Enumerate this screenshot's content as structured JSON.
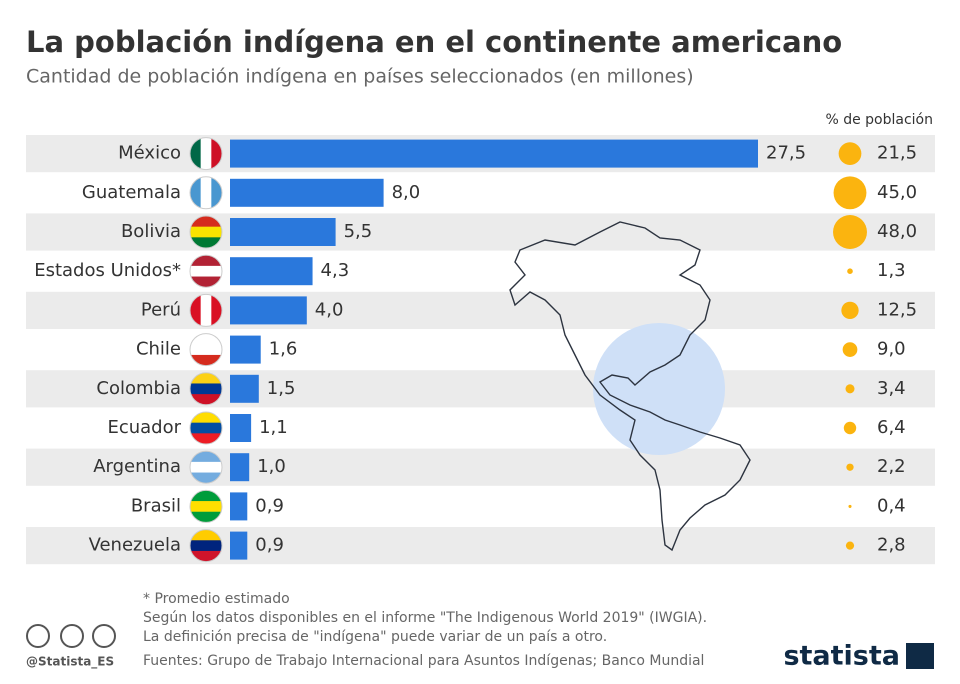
{
  "chart_data": {
    "type": "bar",
    "title": "La población indígena en el continente americano",
    "subtitle": "Cantidad de población indígena en países seleccionados (en millones)",
    "categories": [
      "México",
      "Guatemala",
      "Bolivia",
      "Estados Unidos*",
      "Perú",
      "Chile",
      "Colombia",
      "Ecuador",
      "Argentina",
      "Brasil",
      "Venezuela"
    ],
    "values": [
      27.5,
      8.0,
      5.5,
      4.3,
      4.0,
      1.6,
      1.5,
      1.1,
      1.0,
      0.9,
      0.9
    ],
    "value_labels": [
      "27,5",
      "8,0",
      "5,5",
      "4,3",
      "4,0",
      "1,6",
      "1,5",
      "1,1",
      "1,0",
      "0,9",
      "0,9"
    ],
    "color": "#2a78dc",
    "pct_header": "% de población",
    "pct_values": [
      21.5,
      45.0,
      48.0,
      1.3,
      12.5,
      9.0,
      3.4,
      6.4,
      2.2,
      0.4,
      2.8
    ],
    "pct_labels": [
      "21,5",
      "45,0",
      "48,0",
      "1,3",
      "12,5",
      "9,0",
      "3,4",
      "6,4",
      "2,2",
      "0,4",
      "2,8"
    ],
    "pct_color": "#fbb40f"
  },
  "footer": {
    "notes": [
      "* Promedio estimado",
      "Según los datos disponibles en el informe \"The Indigenous World 2019\" (IWGIA).",
      "La definición precisa de \"indígena\" puede variar de un país a otro.",
      "Fuentes: Grupo de Trabajo Internacional para Asuntos Indígenas; Banco Mundial"
    ],
    "handle": "@Statista_ES",
    "brand": "statista"
  }
}
